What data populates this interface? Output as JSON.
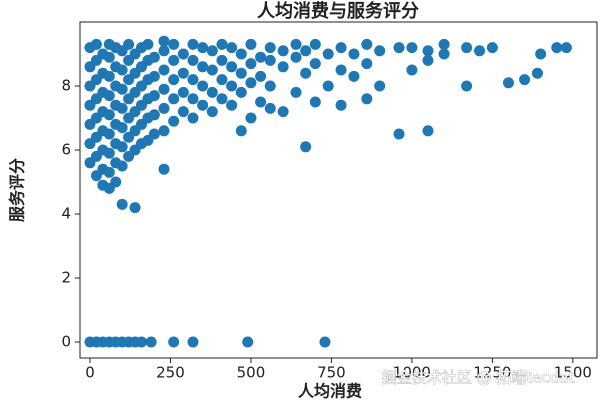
{
  "chart_data": {
    "type": "scatter",
    "title": "人均消费与服务评分",
    "x_label": "人均消费",
    "y_label": "服务评分",
    "annotation": "掘金技术社区 @ 拓端tecdat",
    "color": "#1f77b4",
    "xlim": [
      -31,
      1575
    ],
    "ylim": [
      -0.5,
      10
    ],
    "xticks": [
      0,
      250,
      500,
      750,
      1000,
      1250,
      1500
    ],
    "yticks": [
      0,
      2,
      4,
      6,
      8
    ],
    "x": [
      0,
      0,
      0,
      0,
      0,
      0,
      0,
      20,
      20,
      20,
      20,
      20,
      20,
      20,
      20,
      40,
      40,
      40,
      40,
      40,
      40,
      40,
      40,
      60,
      60,
      60,
      60,
      60,
      60,
      60,
      60,
      60,
      80,
      80,
      80,
      80,
      80,
      80,
      80,
      80,
      100,
      100,
      100,
      100,
      100,
      100,
      100,
      100,
      120,
      120,
      120,
      120,
      120,
      120,
      120,
      140,
      140,
      140,
      140,
      140,
      140,
      140,
      160,
      160,
      160,
      160,
      160,
      160,
      180,
      180,
      180,
      180,
      180,
      180,
      200,
      200,
      200,
      200,
      200,
      230,
      230,
      230,
      230,
      230,
      230,
      230,
      260,
      260,
      260,
      260,
      260,
      290,
      290,
      290,
      290,
      320,
      320,
      320,
      320,
      320,
      350,
      350,
      350,
      350,
      380,
      380,
      380,
      380,
      410,
      410,
      410,
      410,
      440,
      440,
      440,
      440,
      470,
      470,
      470,
      470,
      500,
      500,
      500,
      500,
      530,
      530,
      530,
      560,
      560,
      560,
      560,
      600,
      600,
      600,
      640,
      640,
      640,
      670,
      670,
      670,
      700,
      700,
      700,
      740,
      740,
      780,
      780,
      780,
      820,
      820,
      860,
      860,
      860,
      900,
      900,
      960,
      960,
      1000,
      1000,
      1050,
      1050,
      1050,
      1100,
      1100,
      1170,
      1170,
      1210,
      1250,
      1300,
      1350,
      1390,
      1400,
      1450,
      1480,
      0,
      20,
      40,
      60,
      80,
      100,
      120,
      140,
      160,
      190,
      260,
      320,
      490,
      730
    ],
    "y": [
      5.6,
      6.2,
      6.8,
      7.4,
      8.0,
      8.6,
      9.2,
      5.2,
      5.8,
      6.4,
      7.0,
      7.6,
      8.2,
      8.8,
      9.3,
      4.9,
      5.4,
      6.0,
      6.6,
      7.2,
      7.8,
      8.4,
      9.0,
      4.8,
      5.3,
      5.9,
      6.5,
      7.1,
      7.7,
      8.3,
      8.9,
      9.3,
      5.0,
      5.6,
      6.2,
      6.8,
      7.4,
      8.0,
      8.6,
      9.2,
      4.3,
      5.5,
      6.1,
      6.7,
      7.3,
      7.9,
      8.5,
      9.1,
      5.8,
      6.4,
      7.0,
      7.6,
      8.2,
      8.8,
      9.3,
      4.2,
      6.0,
      6.6,
      7.2,
      7.8,
      8.4,
      9.0,
      6.2,
      6.8,
      7.4,
      8.0,
      8.6,
      9.2,
      6.3,
      7.0,
      7.6,
      8.2,
      8.8,
      9.3,
      6.5,
      7.1,
      7.7,
      8.3,
      8.9,
      5.4,
      6.6,
      7.3,
      7.9,
      8.5,
      9.1,
      9.4,
      6.9,
      7.6,
      8.2,
      8.8,
      9.3,
      7.2,
      7.8,
      8.4,
      9.0,
      7.0,
      7.6,
      8.2,
      8.8,
      9.3,
      7.4,
      8.0,
      8.6,
      9.2,
      7.2,
      7.8,
      8.5,
      9.1,
      7.6,
      8.2,
      8.8,
      9.3,
      7.4,
      8.0,
      8.6,
      9.2,
      6.6,
      7.8,
      8.4,
      9.0,
      7.0,
      8.1,
      8.7,
      9.3,
      7.5,
      8.3,
      8.9,
      7.3,
      8.0,
      8.8,
      9.2,
      7.2,
      8.6,
      9.1,
      7.8,
      8.9,
      9.3,
      6.1,
      8.4,
      9.1,
      7.5,
      8.7,
      9.3,
      8.0,
      9.0,
      7.4,
      8.5,
      9.2,
      8.3,
      9.0,
      7.6,
      8.7,
      9.3,
      8.0,
      9.1,
      6.5,
      9.2,
      8.5,
      9.2,
      6.6,
      8.8,
      9.1,
      9.0,
      9.3,
      8.0,
      9.2,
      9.1,
      9.2,
      8.1,
      8.2,
      8.4,
      9.0,
      9.2,
      9.2,
      0,
      0,
      0,
      0,
      0,
      0,
      0,
      0,
      0,
      0,
      0,
      0,
      0,
      0
    ]
  }
}
